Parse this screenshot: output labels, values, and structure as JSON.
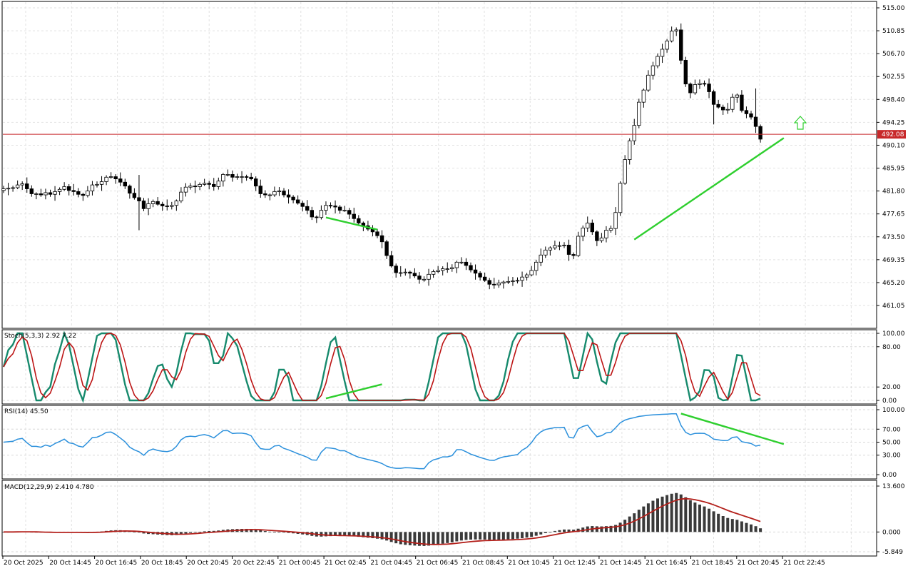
{
  "chart_data": {
    "type": "candlestick",
    "price_axis": {
      "ticks": [
        "515.00",
        "510.85",
        "506.70",
        "502.55",
        "498.40",
        "494.25",
        "490.10",
        "485.95",
        "481.80",
        "477.65",
        "473.50",
        "469.35",
        "465.20",
        "461.05"
      ],
      "ylim": [
        457.5,
        516.5
      ],
      "current_price_label": "492.08",
      "current_price": 492.08
    },
    "time_axis": {
      "labels": [
        "20 Oct 2025",
        "20 Oct 14:45",
        "20 Oct 16:45",
        "20 Oct 18:45",
        "20 Oct 20:45",
        "20 Oct 22:45",
        "21 Oct 00:45",
        "21 Oct 02:45",
        "21 Oct 04:45",
        "21 Oct 06:45",
        "21 Oct 08:45",
        "21 Oct 10:45",
        "21 Oct 12:45",
        "21 Oct 14:45",
        "21 Oct 16:45",
        "21 Oct 18:45",
        "21 Oct 20:45",
        "21 Oct 22:45"
      ]
    },
    "closes": [
      482.2,
      482.3,
      482.4,
      482.9,
      483.1,
      482.2,
      481.3,
      481.3,
      481.1,
      481.5,
      481.2,
      481.7,
      482.1,
      482.6,
      481.9,
      481.7,
      481.2,
      481.0,
      481.8,
      482.9,
      483.0,
      483.5,
      484.3,
      484.4,
      484.0,
      483.4,
      482.7,
      481.4,
      480.6,
      480.0,
      478.6,
      479.5,
      479.9,
      479.4,
      479.1,
      479.0,
      479.2,
      480.0,
      481.6,
      482.5,
      482.7,
      482.6,
      483.0,
      483.2,
      483.0,
      482.6,
      483.6,
      484.8,
      484.8,
      484.3,
      484.4,
      484.4,
      484.3,
      484.0,
      482.7,
      481.3,
      481.1,
      481.1,
      481.7,
      481.8,
      481.1,
      480.7,
      480.2,
      479.6,
      479.0,
      478.3,
      477.1,
      477.0,
      478.3,
      479.2,
      479.1,
      478.9,
      478.3,
      478.3,
      477.6,
      476.8,
      476.0,
      475.5,
      474.9,
      474.4,
      473.7,
      472.6,
      470.1,
      468.2,
      467.0,
      467.0,
      467.1,
      466.9,
      466.4,
      465.8,
      465.8,
      466.7,
      467.2,
      467.4,
      467.7,
      467.7,
      467.9,
      468.9,
      468.9,
      468.3,
      467.5,
      466.9,
      466.2,
      465.6,
      464.9,
      464.8,
      465.1,
      465.3,
      465.4,
      465.5,
      465.6,
      466.2,
      466.6,
      467.4,
      468.9,
      470.2,
      471.1,
      471.5,
      471.9,
      471.9,
      472.0,
      470.3,
      470.1,
      473.6,
      475.1,
      476.0,
      474.4,
      472.8,
      473.3,
      474.7,
      475.0,
      477.9,
      483.2,
      487.5,
      490.9,
      493.7,
      497.9,
      500.1,
      502.8,
      504.5,
      506.2,
      507.5,
      509.0,
      510.8,
      511.0,
      505.5,
      501.2,
      499.6,
      501.1,
      501.3,
      501.2,
      499.8,
      497.5,
      497.0,
      496.5,
      496.6,
      498.8,
      499.2,
      496.4,
      495.8,
      495.2,
      493.5,
      491.2
    ],
    "series": [
      {
        "name": "Stoch(5,3,3)",
        "values": [
          2.92,
          7.22
        ],
        "ylim": [
          0,
          100
        ],
        "ticks": [
          "100.00",
          "80.00",
          "20.00",
          "0.00"
        ]
      },
      {
        "name": "RSI(14)",
        "values": [
          45.5
        ],
        "ylim": [
          0,
          100
        ],
        "ticks": [
          "100.00",
          "70.00",
          "50.00",
          "30.00",
          "0.00"
        ]
      },
      {
        "name": "MACD(12,29,9)",
        "values": [
          2.41,
          4.78
        ],
        "ylim": [
          -5.849,
          13.6
        ],
        "ticks": [
          "13.600",
          "0.000",
          "-5.849"
        ]
      }
    ],
    "colors": {
      "candle_bull": "#ffffff",
      "candle_bear": "#000000",
      "price_line": "#c8282a",
      "trend": "#2fcf2f",
      "stoch_main": "#178a6d",
      "stoch_signal": "#bc1414",
      "rsi": "#2b90dc",
      "macd_hist": "#3a3a3a",
      "macd_signal": "#b3201b",
      "arrow": "#2fcf2f"
    },
    "grid": true
  }
}
